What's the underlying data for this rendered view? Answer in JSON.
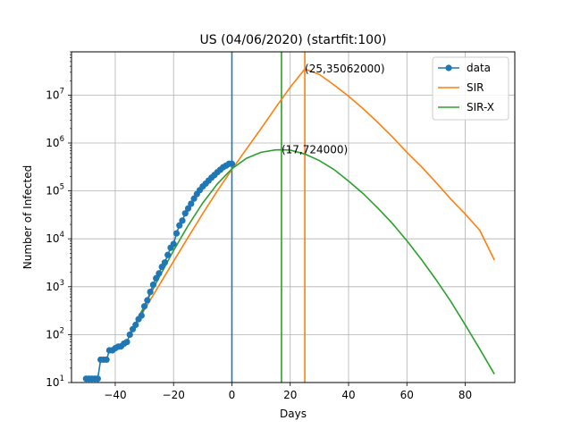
{
  "chart_data": {
    "type": "line",
    "title": "US (04/06/2020) (startfit:100)",
    "xlabel": "Days",
    "ylabel": "Number of Infected",
    "xlim": [
      -55,
      97
    ],
    "ylim": [
      10,
      80000000
    ],
    "yscale": "log",
    "grid": true,
    "legend_position": "top-right",
    "x_ticks": [
      {
        "value": -40,
        "label": "−40"
      },
      {
        "value": -20,
        "label": "−20"
      },
      {
        "value": 0,
        "label": "0"
      },
      {
        "value": 20,
        "label": "20"
      },
      {
        "value": 40,
        "label": "40"
      },
      {
        "value": 60,
        "label": "60"
      },
      {
        "value": 80,
        "label": "80"
      }
    ],
    "y_ticks": [
      {
        "value": 10,
        "base": "10",
        "exp": "1"
      },
      {
        "value": 100,
        "base": "10",
        "exp": "2"
      },
      {
        "value": 1000,
        "base": "10",
        "exp": "3"
      },
      {
        "value": 10000,
        "base": "10",
        "exp": "4"
      },
      {
        "value": 100000,
        "base": "10",
        "exp": "5"
      },
      {
        "value": 1000000,
        "base": "10",
        "exp": "6"
      },
      {
        "value": 10000000,
        "base": "10",
        "exp": "7"
      }
    ],
    "series": [
      {
        "name": "data",
        "color": "#1f77b4",
        "marker": "circle",
        "x": [
          -50,
          -49,
          -48,
          -47,
          -46,
          -45,
          -44,
          -43,
          -42,
          -41,
          -40,
          -39,
          -38,
          -37,
          -36,
          -35,
          -34,
          -33,
          -32,
          -31,
          -30,
          -29,
          -28,
          -27,
          -26,
          -25,
          -24,
          -23,
          -22,
          -21,
          -20,
          -19,
          -18,
          -17,
          -16,
          -15,
          -14,
          -13,
          -12,
          -11,
          -10,
          -9,
          -8,
          -7,
          -6,
          -5,
          -4,
          -3,
          -2,
          -1,
          0
        ],
        "y": [
          12,
          12,
          12,
          12,
          12,
          30,
          30,
          30,
          47,
          47,
          52,
          56,
          57,
          65,
          70,
          100,
          130,
          160,
          210,
          250,
          390,
          520,
          780,
          1100,
          1500,
          1900,
          2600,
          3200,
          4600,
          6500,
          7800,
          13000,
          19000,
          24000,
          34000,
          43000,
          54000,
          69000,
          86000,
          104000,
          124000,
          142000,
          164000,
          189000,
          214000,
          245000,
          276000,
          312000,
          337000,
          368000,
          368000
        ]
      },
      {
        "name": "SIR",
        "color": "#ff7f0e",
        "x": [
          -35,
          -30,
          -25,
          -20,
          -15,
          -10,
          -5,
          0,
          5,
          10,
          15,
          20,
          25,
          30,
          35,
          40,
          45,
          50,
          55,
          60,
          65,
          70,
          75,
          80,
          85,
          90
        ],
        "y": [
          100,
          330,
          1060,
          3400,
          10800,
          33500,
          100000,
          280000,
          750000,
          2000000,
          5500000,
          14600000,
          35062000,
          27000000,
          16300000,
          9500000,
          5200000,
          2700000,
          1350000,
          640000,
          320000,
          150000,
          68000,
          33000,
          15000,
          3600
        ]
      },
      {
        "name": "SIR-X",
        "color": "#2ca02c",
        "x": [
          -35,
          -30,
          -25,
          -20,
          -15,
          -10,
          -5,
          0,
          5,
          10,
          15,
          17,
          20,
          25,
          30,
          35,
          40,
          45,
          50,
          55,
          60,
          65,
          70,
          75,
          80,
          85,
          90
        ],
        "y": [
          100,
          400,
          1550,
          5700,
          19000,
          56000,
          140000,
          290000,
          480000,
          640000,
          720000,
          724000,
          710000,
          590000,
          430000,
          280000,
          160000,
          88000,
          44000,
          21000,
          9100,
          3700,
          1400,
          500,
          160,
          50,
          15
        ]
      }
    ],
    "vlines": [
      {
        "x": 0,
        "color": "#1f77b4"
      },
      {
        "x": 17,
        "color": "#2ca02c"
      },
      {
        "x": 25,
        "color": "#ff7f0e"
      }
    ],
    "annotations": [
      {
        "text": "(17,724000)",
        "x": 17,
        "y": 724000
      },
      {
        "text": "(25,35062000)",
        "x": 25,
        "y": 35062000
      }
    ]
  }
}
